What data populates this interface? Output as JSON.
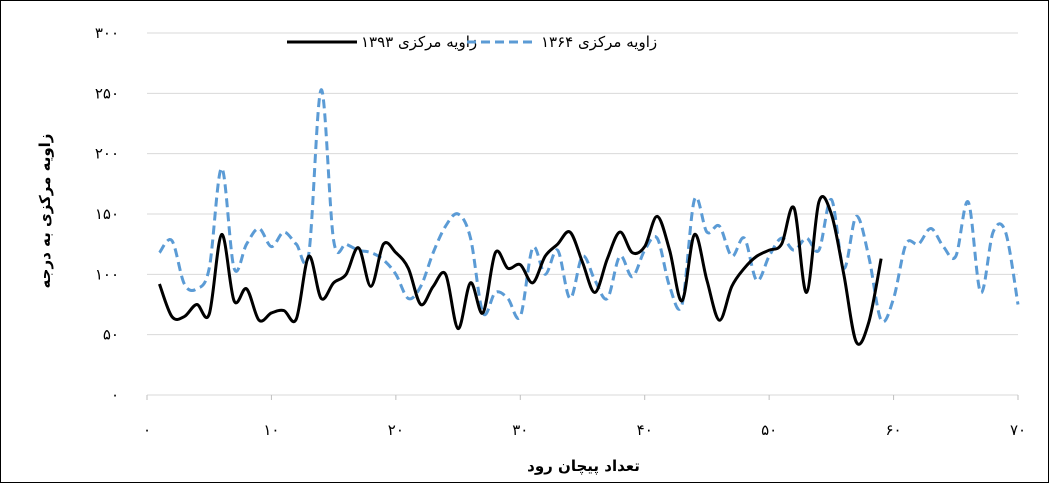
{
  "chart_data": {
    "type": "line",
    "xlabel": "تعداد پیچان رود",
    "ylabel": "زاویه مرکزی به درجه",
    "xlim": [
      0,
      70
    ],
    "ylim": [
      0,
      300
    ],
    "x_ticks": [
      0,
      10,
      20,
      30,
      40,
      50,
      60,
      70
    ],
    "y_ticks": [
      0,
      50,
      100,
      150,
      200,
      250,
      300
    ],
    "x_tick_labels": [
      "۰",
      "۱۰",
      "۲۰",
      "۳۰",
      "۴۰",
      "۵۰",
      "۶۰",
      "۷۰"
    ],
    "y_tick_labels": [
      "۰",
      "۵۰",
      "۱۰۰",
      "۱۵۰",
      "۲۰۰",
      "۲۵۰",
      "۳۰۰"
    ],
    "grid": "horizontal",
    "legend_position": "top",
    "series": [
      {
        "name": "زاویه مرکزی ۱۳۶۴",
        "color": "#5b9bd5",
        "dash": "dashed",
        "values": [
          118,
          128,
          92,
          88,
          105,
          188,
          105,
          125,
          138,
          123,
          135,
          125,
          117,
          253,
          128,
          125,
          120,
          118,
          112,
          100,
          80,
          90,
          118,
          140,
          150,
          130,
          68,
          85,
          80,
          65,
          122,
          100,
          120,
          80,
          115,
          95,
          80,
          115,
          98,
          120,
          130,
          90,
          75,
          162,
          135,
          140,
          115,
          130,
          95,
          115,
          130,
          120,
          130,
          120,
          162,
          105,
          148,
          115,
          62,
          80,
          125,
          125,
          138,
          123,
          115,
          160,
          85,
          135,
          135,
          75
        ]
      },
      {
        "name": "زاویه مرکزی ۱۳۹۳",
        "color": "#000000",
        "dash": "solid",
        "values": [
          92,
          65,
          65,
          75,
          67,
          133,
          78,
          88,
          62,
          68,
          70,
          63,
          115,
          80,
          93,
          100,
          122,
          90,
          125,
          118,
          105,
          75,
          90,
          100,
          55,
          93,
          68,
          118,
          105,
          108,
          93,
          115,
          125,
          135,
          110,
          85,
          113,
          135,
          118,
          123,
          148,
          120,
          78,
          133,
          95,
          62,
          90,
          105,
          115,
          120,
          125,
          155,
          85,
          160,
          150,
          100,
          44,
          60,
          113
        ]
      }
    ]
  }
}
